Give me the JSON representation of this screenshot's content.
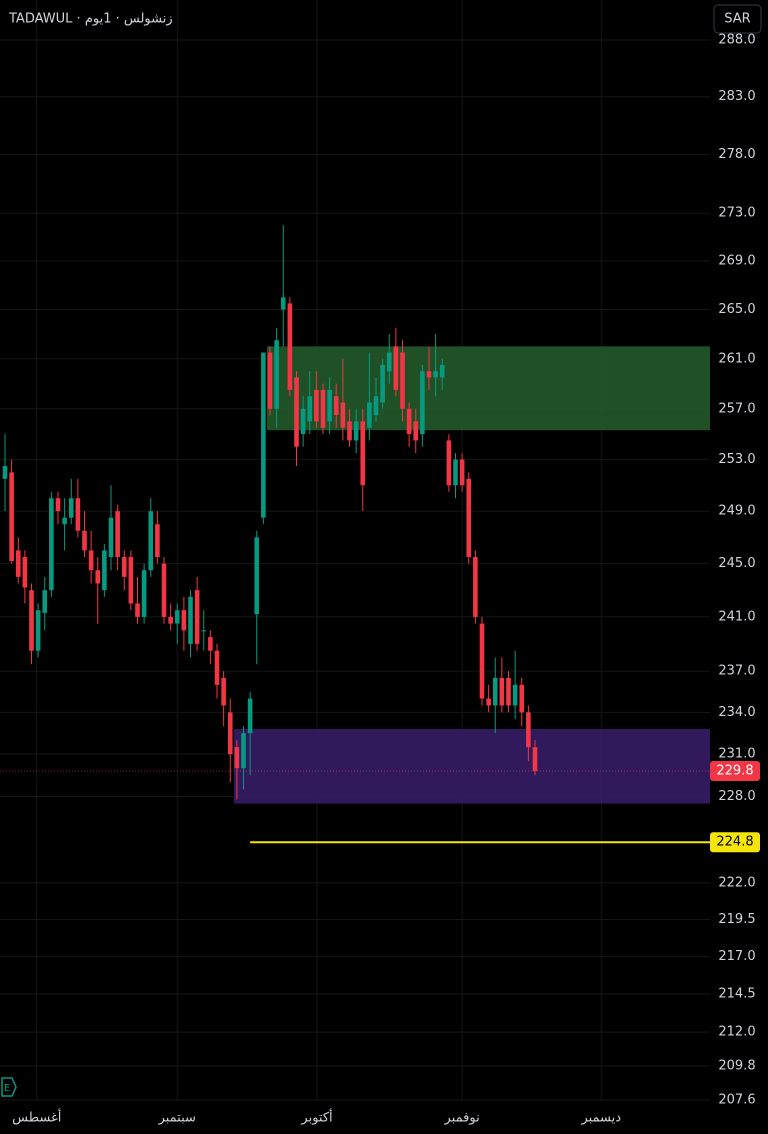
{
  "chart_data": {
    "type": "candlestick",
    "title": "TADAWUL · زنشولس · 1يوم",
    "currency": "SAR",
    "log_scale": true,
    "grid": true,
    "up_color": "#089981",
    "down_color": "#f23645",
    "open": [
      251.5,
      252,
      246,
      245.5,
      243,
      238.5,
      241.3,
      243,
      250,
      248,
      248.5,
      250,
      247.5,
      246,
      244.5,
      243,
      245.5,
      249,
      245.5,
      245.5,
      242,
      241,
      244.5,
      248,
      245,
      241,
      240.5,
      241.5,
      239,
      243,
      240,
      239.5,
      238.5,
      236.5,
      234,
      231.5,
      230,
      232.5,
      241.2,
      248.5,
      261.5,
      257,
      265,
      265.5,
      259.5,
      255,
      256,
      258.5,
      258.5,
      256,
      258,
      257.5,
      256,
      254.5,
      256,
      255.5,
      256.5,
      257.5,
      260,
      262,
      261.5,
      257,
      256,
      255,
      260,
      259.5,
      259.5,
      254.5,
      251,
      253,
      251.5,
      245.5,
      240.5,
      235,
      234.5,
      236.5,
      236.5,
      234.5,
      236,
      234,
      231.5
    ],
    "high": [
      255,
      253,
      247,
      246,
      243.5,
      242,
      244,
      250.5,
      250.5,
      250,
      251.5,
      251.5,
      249,
      247.5,
      245.5,
      246.5,
      251,
      249.5,
      246,
      246,
      244,
      245,
      250,
      249,
      245.5,
      242,
      242,
      242.5,
      243,
      244,
      241.5,
      240,
      239,
      237,
      235,
      232,
      233,
      235.5,
      247.5,
      261.5,
      262,
      263.5,
      272,
      266,
      260,
      258,
      260,
      260,
      259,
      259.5,
      259,
      261,
      257,
      257,
      257,
      261.5,
      259.5,
      261,
      263,
      263.5,
      262.5,
      257.5,
      257,
      260.5,
      262,
      263,
      261,
      255,
      253.5,
      253.5,
      252,
      246,
      241,
      236,
      238,
      238,
      237,
      238.5,
      236.5,
      234.5,
      232
    ],
    "low": [
      249,
      245,
      243.5,
      242,
      237.5,
      238,
      240,
      242.5,
      248,
      246,
      248,
      247,
      245.5,
      243.5,
      240.5,
      242.5,
      244.5,
      244.5,
      243,
      241.5,
      240.5,
      240.5,
      244,
      245,
      240.5,
      240,
      239,
      238.5,
      238,
      238.5,
      238.5,
      237.5,
      235,
      233,
      229,
      227.8,
      228.5,
      229.5,
      237.5,
      248,
      256.5,
      255.5,
      262,
      258,
      252.5,
      254,
      255,
      255.5,
      255,
      255,
      255.5,
      254.5,
      254,
      253.5,
      249,
      254.5,
      256,
      257,
      259,
      258,
      256,
      254,
      253.5,
      254,
      258.5,
      258,
      258.5,
      250.5,
      250,
      250.5,
      245,
      240.5,
      234.5,
      234,
      232.5,
      234,
      234,
      233.5,
      233,
      230.5,
      229.5
    ],
    "close": [
      252.5,
      245.2,
      244,
      243.2,
      238.5,
      241.5,
      243,
      250,
      249,
      248.5,
      250,
      247.5,
      246,
      244.5,
      243.5,
      246,
      248.5,
      245.5,
      244,
      242,
      241,
      244.5,
      249,
      245.5,
      241,
      240.5,
      241.5,
      240,
      242.5,
      239,
      240,
      238.5,
      236,
      234.5,
      231,
      230,
      232.5,
      235,
      247,
      261.5,
      257,
      262.5,
      266,
      258.5,
      254,
      257,
      258,
      256,
      255.5,
      258.5,
      256.5,
      255.5,
      254.5,
      256,
      251,
      257.5,
      258,
      260.5,
      261.5,
      258.5,
      257,
      255,
      254.5,
      260,
      259.5,
      260,
      260.5,
      251,
      253,
      251,
      245.5,
      241,
      235,
      234.5,
      236.5,
      234.5,
      234.5,
      236,
      234,
      231.5,
      229.8
    ],
    "ylim": [
      207.6,
      288.0
    ],
    "yticks": [
      {
        "value": 288,
        "label": "288.0"
      },
      {
        "value": 283,
        "label": "283.0"
      },
      {
        "value": 278,
        "label": "278.0"
      },
      {
        "value": 273,
        "label": "273.0"
      },
      {
        "value": 269,
        "label": "269.0"
      },
      {
        "value": 265,
        "label": "265.0"
      },
      {
        "value": 261,
        "label": "261.0"
      },
      {
        "value": 257,
        "label": "257.0"
      },
      {
        "value": 253,
        "label": "253.0"
      },
      {
        "value": 249,
        "label": "249.0"
      },
      {
        "value": 245,
        "label": "245.0"
      },
      {
        "value": 241,
        "label": "241.0"
      },
      {
        "value": 237,
        "label": "237.0"
      },
      {
        "value": 234,
        "label": "234.0"
      },
      {
        "value": 231,
        "label": "231.0"
      },
      {
        "value": 228,
        "label": "228.0"
      },
      {
        "value": 222,
        "label": "222.0"
      },
      {
        "value": 219.5,
        "label": "219.5"
      },
      {
        "value": 217,
        "label": "217.0"
      },
      {
        "value": 214.5,
        "label": "214.5"
      },
      {
        "value": 212,
        "label": "212.0"
      },
      {
        "value": 209.8,
        "label": "209.8"
      },
      {
        "value": 207.6,
        "label": "207.6"
      }
    ],
    "xticks": [
      {
        "value": 4.8,
        "label": "أغسطس"
      },
      {
        "value": 26,
        "label": "سبتمبر"
      },
      {
        "value": 47.1,
        "label": "أكتوبر"
      },
      {
        "value": 69,
        "label": "نوفمبر"
      },
      {
        "value": 90,
        "label": "ديسمبر"
      }
    ],
    "zones": [
      {
        "top": 262.0,
        "bottom": 255.3,
        "start": 40,
        "color": "#24592a"
      },
      {
        "top": 232.8,
        "bottom": 227.5,
        "start": 35,
        "color": "#361d66"
      }
    ],
    "last_price": 229.8,
    "last_price_color": "#f23645",
    "level": 224.8,
    "level_start": 37,
    "level_color": "#f5e50a"
  }
}
